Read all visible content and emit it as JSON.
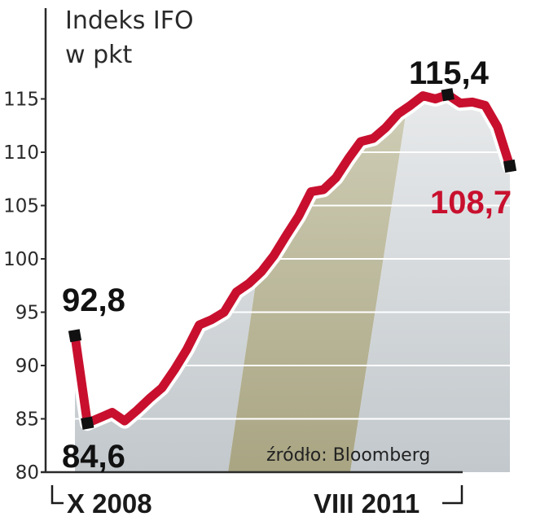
{
  "chart_data": {
    "type": "line",
    "title": "Indeks IFO",
    "subtitle": "w pkt",
    "ylim": [
      80,
      116.5
    ],
    "yticks": [
      80,
      85,
      90,
      95,
      100,
      105,
      110,
      115
    ],
    "x_start_label": "X 2008",
    "x_end_label": "VIII 2011",
    "source": "źródło: Bloomberg",
    "series": [
      {
        "color": "#c8102e",
        "values": [
          92.8,
          84.6,
          85.1,
          85.6,
          84.8,
          85.8,
          86.9,
          87.9,
          89.6,
          91.5,
          93.8,
          94.3,
          95.0,
          96.9,
          97.7,
          98.8,
          100.3,
          102.2,
          104.0,
          106.3,
          106.5,
          107.6,
          109.4,
          111.0,
          111.3,
          112.3,
          113.6,
          114.4,
          115.3,
          115.0,
          115.4,
          114.6,
          114.7,
          114.4,
          112.4,
          108.7
        ]
      }
    ],
    "callouts": {
      "start": "92,8",
      "min": "84,6",
      "max": "115,4",
      "end": "108,7"
    },
    "grid": true
  }
}
